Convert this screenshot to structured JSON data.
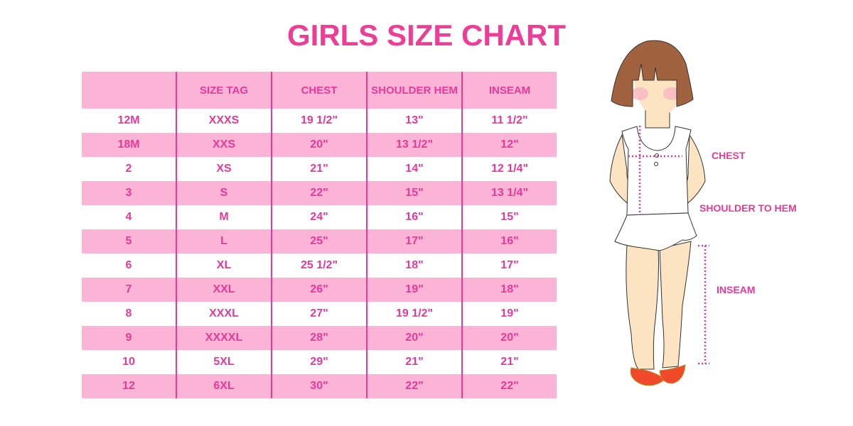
{
  "title": "GIRLS SIZE CHART",
  "table": {
    "headers": [
      "",
      "SIZE TAG",
      "CHEST",
      "SHOULDER HEM",
      "INSEAM"
    ],
    "rows": [
      [
        "12M",
        "XXXS",
        "19 1/2\"",
        "13\"",
        "11 1/2\""
      ],
      [
        "18M",
        "XXS",
        "20\"",
        "13 1/2\"",
        "12\""
      ],
      [
        "2",
        "XS",
        "21\"",
        "14\"",
        "12 1/4\""
      ],
      [
        "3",
        "S",
        "22\"",
        "15\"",
        "13 1/4\""
      ],
      [
        "4",
        "M",
        "24\"",
        "16\"",
        "15\""
      ],
      [
        "5",
        "L",
        "25\"",
        "17\"",
        "16\""
      ],
      [
        "6",
        "XL",
        "25 1/2\"",
        "18\"",
        "17\""
      ],
      [
        "7",
        "XXL",
        "26\"",
        "19\"",
        "18\""
      ],
      [
        "8",
        "XXXL",
        "27\"",
        "19 1/2\"",
        "19\""
      ],
      [
        "9",
        "XXXXL",
        "28\"",
        "20\"",
        "20\""
      ],
      [
        "10",
        "5XL",
        "29\"",
        "21\"",
        "21\""
      ],
      [
        "12",
        "6XL",
        "30\"",
        "22\"",
        "22\""
      ]
    ]
  },
  "illustration": {
    "labels": {
      "chest": "CHEST",
      "shoulder_to_hem": "SHOULDER TO HEM",
      "inseam": "INSEAM"
    }
  },
  "colors": {
    "accent": "#e8399a",
    "row_pink": "#fbb3d6"
  }
}
